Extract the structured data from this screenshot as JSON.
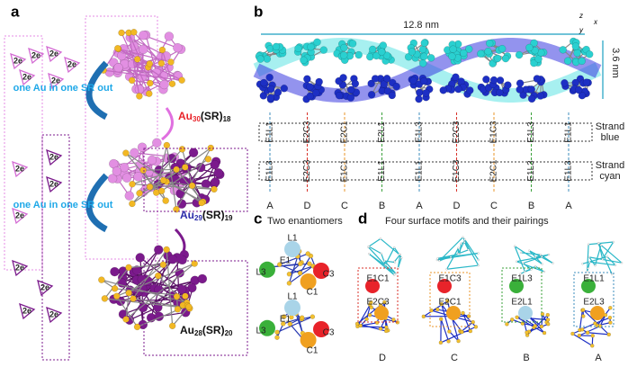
{
  "panel_a": {
    "label": "a",
    "two_e": [
      "2e",
      "2e",
      "2e",
      "2e",
      "2e",
      "2e",
      "2e",
      "2e",
      "2e",
      "2e",
      "2e",
      "2e",
      "2e",
      "2e"
    ],
    "step1": "one Au in one SR out",
    "step2": "one Au in one SR out",
    "formulas": [
      {
        "base": "Au",
        "n": "30",
        "mid": "(SR)",
        "m": "18"
      },
      {
        "base": "Au",
        "n": "29",
        "mid": "(SR)",
        "m": "19"
      },
      {
        "base": "Au",
        "n": "28",
        "mid": "(SR)",
        "m": "20"
      }
    ]
  },
  "panel_b": {
    "label": "b",
    "length": "12.8 nm",
    "height": "3.6 nm",
    "axes": [
      "z",
      "x",
      "y"
    ],
    "strand_blue": [
      "Strand",
      "blue"
    ],
    "strand_cyan": [
      "Strand",
      "cyan"
    ],
    "top_row": [
      "E1L1",
      "E2C3",
      "E2C1",
      "E2L1",
      "E1L3",
      "E2C3",
      "E1C3",
      "E1L3",
      "E1L1"
    ],
    "bottom_row": [
      "E1L3",
      "E2C3",
      "E1C1",
      "E1L1",
      "E1L1",
      "E1C3",
      "E2C1",
      "E1L3",
      "E1L3"
    ],
    "columns": [
      "A",
      "D",
      "C",
      "B",
      "A",
      "D",
      "C",
      "B",
      "A"
    ]
  },
  "panel_c": {
    "label": "c",
    "title": "Two enantiomers",
    "top": [
      "L1",
      "L3",
      "E1",
      "C3",
      "C1"
    ],
    "bottom": [
      "L1",
      "L3",
      "E1",
      "C3",
      "C1"
    ]
  },
  "panel_d": {
    "label": "d",
    "title": "Four surface motifs and their pairings",
    "motifs": [
      {
        "upper": "E1C1",
        "lower": "E2C3",
        "name": "D"
      },
      {
        "upper": "E1C3",
        "lower": "E2C1",
        "name": "C"
      },
      {
        "upper": "E1L3",
        "lower": "E2L1",
        "name": "B"
      },
      {
        "upper": "E1L1",
        "lower": "E2L3",
        "name": "A"
      }
    ]
  }
}
